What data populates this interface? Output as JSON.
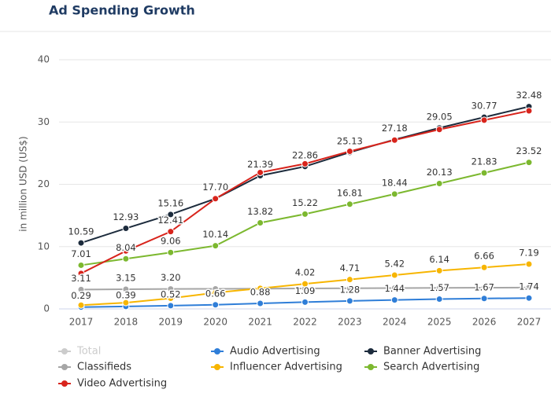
{
  "chart_data": {
    "type": "line",
    "title": "Ad Spending Growth",
    "y_label": "in million USD (US$)",
    "categories": [
      "2017",
      "2018",
      "2019",
      "2020",
      "2021",
      "2022",
      "2023",
      "2024",
      "2025",
      "2026",
      "2027"
    ],
    "ylim": [
      0,
      40
    ],
    "yticks": [
      0,
      10,
      20,
      30,
      40
    ],
    "grid": true,
    "legend": "bottom",
    "series": [
      {
        "name": "Total",
        "color": "#cccccc",
        "visible": false,
        "values": [
          null,
          null,
          null,
          null,
          null,
          null,
          null,
          null,
          null,
          null,
          null
        ]
      },
      {
        "name": "Audio Advertising",
        "color": "#2f7ed8",
        "values": [
          0.29,
          0.39,
          0.52,
          0.66,
          0.88,
          1.09,
          1.28,
          1.44,
          1.57,
          1.67,
          1.74
        ],
        "value_labels": [
          "0.29",
          "0.39",
          "0.52",
          "0.66",
          "0.88",
          "1.09",
          "1.28",
          "1.44",
          "1.57",
          "1.67",
          "1.74"
        ]
      },
      {
        "name": "Banner Advertising",
        "color": "#1c2b3c",
        "values": [
          10.59,
          12.93,
          15.16,
          17.7,
          21.39,
          22.86,
          25.13,
          27.18,
          29.05,
          30.77,
          32.48
        ],
        "value_labels": [
          "10.59",
          "12.93",
          "15.16",
          "17.70",
          "21.39",
          "22.86",
          "25.13",
          "27.18",
          "29.05",
          "30.77",
          "32.48"
        ]
      },
      {
        "name": "Classifieds",
        "color": "#a6a6a6",
        "values": [
          3.11,
          3.15,
          3.2,
          3.22,
          3.25,
          3.28,
          3.31,
          3.34,
          3.37,
          3.4,
          3.43
        ],
        "value_labels": [
          "3.11",
          "3.15",
          "3.20",
          null,
          null,
          null,
          null,
          null,
          null,
          null,
          null
        ]
      },
      {
        "name": "Influencer Advertising",
        "color": "#f7b500",
        "values": [
          0.6,
          1.0,
          1.7,
          2.6,
          3.3,
          4.02,
          4.71,
          5.42,
          6.14,
          6.66,
          7.19
        ],
        "value_labels": [
          null,
          null,
          null,
          null,
          null,
          "4.02",
          "4.71",
          "5.42",
          "6.14",
          "6.66",
          "7.19"
        ]
      },
      {
        "name": "Search Advertising",
        "color": "#7cb82f",
        "values": [
          7.01,
          8.04,
          9.06,
          10.14,
          13.82,
          15.22,
          16.81,
          18.44,
          20.13,
          21.83,
          23.52
        ],
        "value_labels": [
          "7.01",
          "8.04",
          "9.06",
          "10.14",
          "13.82",
          "15.22",
          "16.81",
          "18.44",
          "20.13",
          "21.83",
          "23.52"
        ]
      },
      {
        "name": "Video Advertising",
        "color": "#d8241c",
        "values": [
          5.7,
          9.3,
          12.41,
          17.7,
          21.9,
          23.3,
          25.3,
          27.1,
          28.8,
          30.3,
          31.8
        ],
        "value_labels": [
          null,
          null,
          "12.41",
          null,
          null,
          null,
          null,
          null,
          null,
          null,
          null
        ]
      }
    ]
  }
}
